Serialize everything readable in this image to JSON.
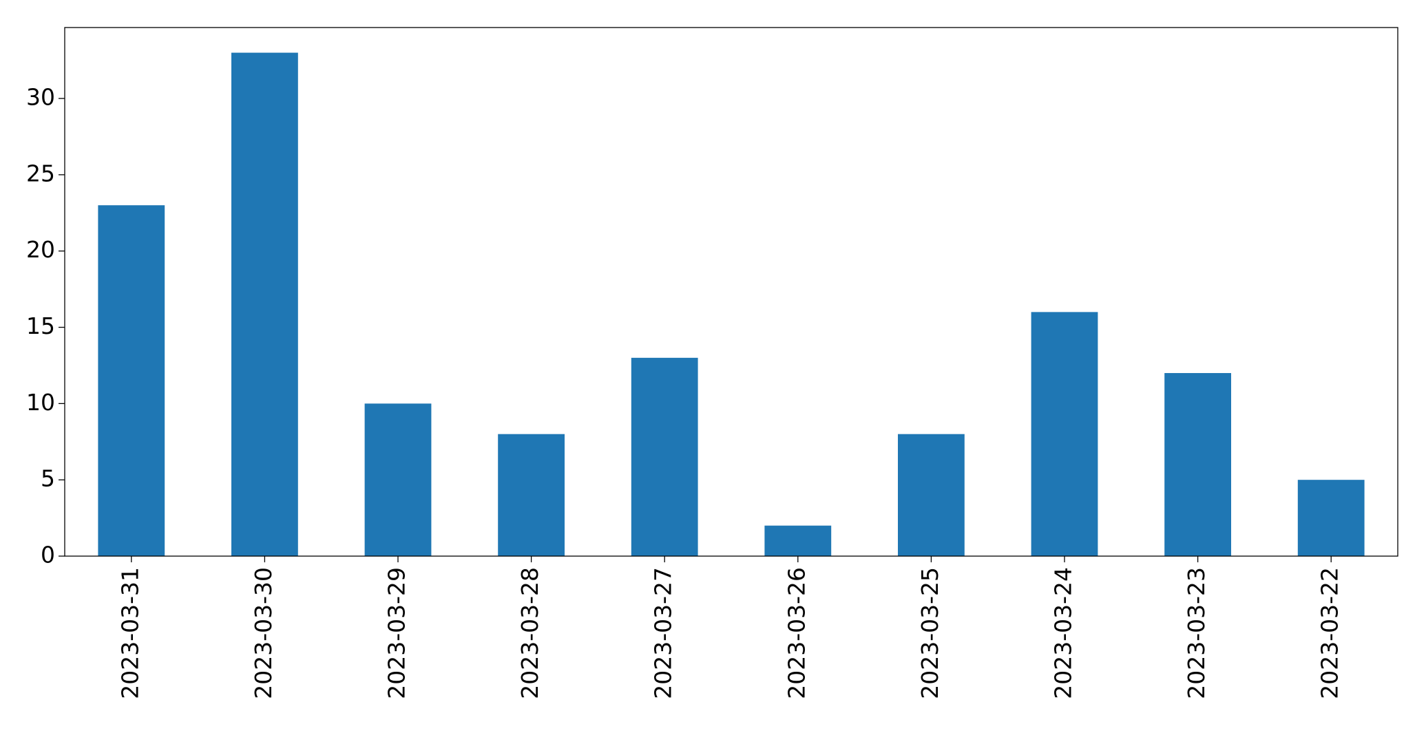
{
  "chart_data": {
    "type": "bar",
    "categories": [
      "2023-03-31",
      "2023-03-30",
      "2023-03-29",
      "2023-03-28",
      "2023-03-27",
      "2023-03-26",
      "2023-03-25",
      "2023-03-24",
      "2023-03-23",
      "2023-03-22"
    ],
    "values": [
      23,
      33,
      10,
      8,
      13,
      2,
      8,
      16,
      12,
      5
    ],
    "color": "#1f77b4",
    "ylim": [
      0,
      34.65
    ],
    "yticks": [
      0,
      5,
      10,
      15,
      20,
      25,
      30
    ],
    "grid": false
  }
}
